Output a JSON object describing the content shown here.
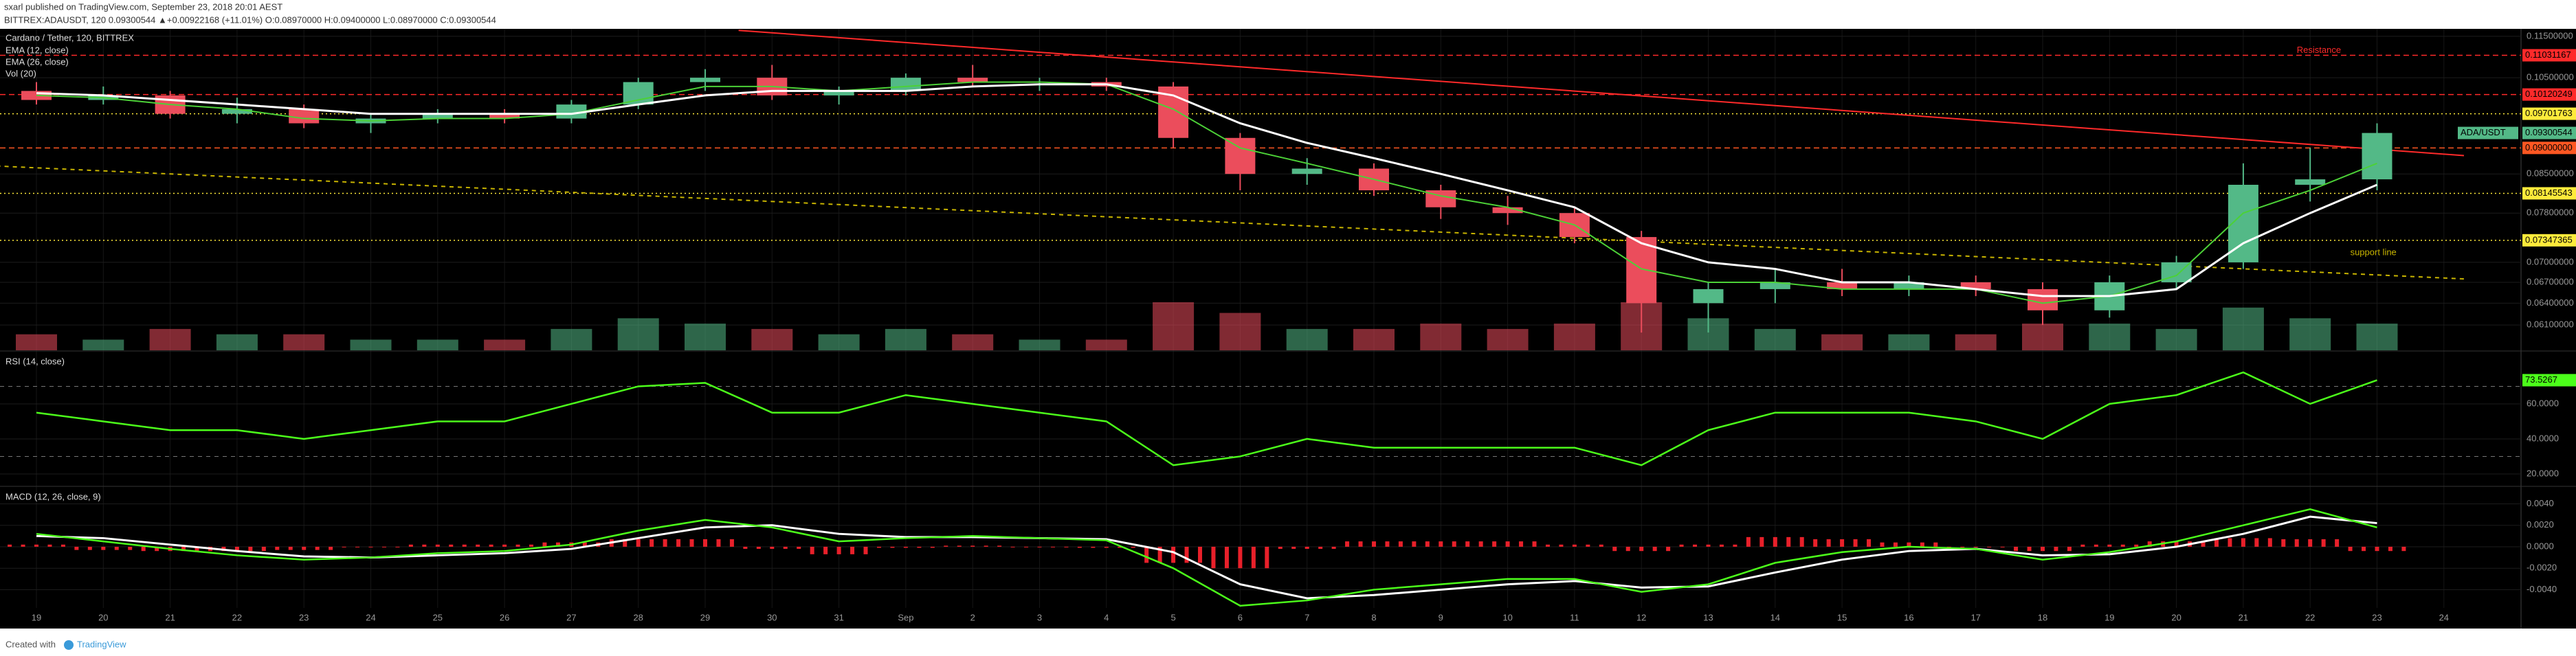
{
  "header": {
    "published": "sxarl published on TradingView.com, September 23, 2018 20:01 AEST",
    "quote": "BITTREX:ADAUSDT, 120 0.09300544 ▲+0.00922168 (+11.01%) O:0.08970000 H:0.09400000 L:0.08970000 C:0.09300544"
  },
  "footer": {
    "created": "Created with",
    "brand": "TradingView"
  },
  "chart_data": [
    {
      "type": "candlestick",
      "title": "Cardano / Tether, 120, BITTREX",
      "log": true,
      "grid": true,
      "categories": [
        "19",
        "20",
        "21",
        "22",
        "23",
        "24",
        "25",
        "26",
        "27",
        "28",
        "29",
        "30",
        "31",
        "Sep",
        "2",
        "3",
        "4",
        "5",
        "6",
        "7",
        "8",
        "9",
        "10",
        "11",
        "12",
        "13",
        "14",
        "15",
        "16",
        "17",
        "18",
        "19",
        "20",
        "21",
        "22",
        "23",
        "24"
      ],
      "open": [
        0.102,
        0.1,
        0.101,
        0.097,
        0.098,
        0.095,
        0.096,
        0.097,
        0.096,
        0.099,
        0.104,
        0.105,
        0.101,
        0.102,
        0.105,
        0.104,
        0.104,
        0.103,
        0.092,
        0.085,
        0.086,
        0.082,
        0.079,
        0.078,
        0.074,
        0.064,
        0.066,
        0.067,
        0.066,
        0.067,
        0.066,
        0.063,
        0.067,
        0.07,
        0.083,
        0.084,
        null
      ],
      "high": [
        0.104,
        0.103,
        0.102,
        0.1005,
        0.099,
        0.097,
        0.098,
        0.098,
        0.1,
        0.105,
        0.107,
        0.108,
        0.103,
        0.106,
        0.108,
        0.105,
        0.105,
        0.104,
        0.093,
        0.088,
        0.087,
        0.083,
        0.081,
        0.079,
        0.075,
        0.067,
        0.069,
        0.069,
        0.068,
        0.068,
        0.067,
        0.068,
        0.071,
        0.087,
        0.09,
        0.095,
        null
      ],
      "low": [
        0.099,
        0.099,
        0.096,
        0.095,
        0.094,
        0.093,
        0.095,
        0.095,
        0.095,
        0.098,
        0.102,
        0.1,
        0.099,
        0.101,
        0.103,
        0.102,
        0.102,
        0.09,
        0.082,
        0.083,
        0.081,
        0.077,
        0.076,
        0.073,
        0.06,
        0.06,
        0.064,
        0.065,
        0.065,
        0.065,
        0.061,
        0.062,
        0.066,
        0.069,
        0.08,
        0.082,
        null
      ],
      "close": [
        0.1,
        0.101,
        0.097,
        0.098,
        0.095,
        0.096,
        0.097,
        0.096,
        0.099,
        0.104,
        0.105,
        0.101,
        0.102,
        0.105,
        0.104,
        0.104,
        0.103,
        0.092,
        0.085,
        0.086,
        0.082,
        0.079,
        0.078,
        0.074,
        0.064,
        0.066,
        0.067,
        0.066,
        0.067,
        0.066,
        0.063,
        0.067,
        0.07,
        0.083,
        0.084,
        0.09300544,
        null
      ],
      "up_color": "#53b987",
      "down_color": "#eb4d5c",
      "series": [
        {
          "name": "EMA (12, close)",
          "color": "#4cd137",
          "values": [
            0.101,
            0.1005,
            0.099,
            0.098,
            0.096,
            0.0955,
            0.096,
            0.096,
            0.097,
            0.1,
            0.103,
            0.103,
            0.102,
            0.103,
            0.104,
            0.104,
            0.1035,
            0.098,
            0.09,
            0.087,
            0.084,
            0.081,
            0.079,
            0.076,
            0.069,
            0.067,
            0.067,
            0.066,
            0.066,
            0.066,
            0.064,
            0.065,
            0.068,
            0.078,
            0.082,
            0.087,
            null
          ]
        },
        {
          "name": "EMA (26, close)",
          "color": "#ffffff",
          "values": [
            0.1015,
            0.101,
            0.1,
            0.099,
            0.098,
            0.097,
            0.097,
            0.097,
            0.097,
            0.099,
            0.101,
            0.102,
            0.102,
            0.102,
            0.103,
            0.1035,
            0.1035,
            0.101,
            0.095,
            0.091,
            0.088,
            0.085,
            0.082,
            0.079,
            0.073,
            0.07,
            0.069,
            0.067,
            0.067,
            0.066,
            0.065,
            0.065,
            0.066,
            0.073,
            0.078,
            0.083,
            null
          ]
        }
      ],
      "volume": {
        "name": "Vol (20)",
        "values": [
          3,
          2,
          4,
          3,
          3,
          2,
          2,
          2,
          4,
          6,
          5,
          4,
          3,
          4,
          3,
          2,
          2,
          9,
          7,
          4,
          4,
          5,
          4,
          5,
          9,
          6,
          4,
          3,
          3,
          3,
          5,
          5,
          4,
          8,
          6,
          5,
          null
        ]
      },
      "ylim": [
        0.0577,
        0.1169
      ],
      "yticks": [
        {
          "value": 0.115,
          "label": "0.11500000"
        },
        {
          "value": 0.105,
          "label": "0.10500000"
        },
        {
          "value": 0.085,
          "label": "0.08500000"
        },
        {
          "value": 0.078,
          "label": "0.07800000"
        },
        {
          "value": 0.07,
          "label": "0.07000000"
        },
        {
          "value": 0.067,
          "label": "0.06700000"
        },
        {
          "value": 0.064,
          "label": "0.06400000"
        },
        {
          "value": 0.061,
          "label": "0.06100000"
        }
      ],
      "price_lines": [
        {
          "value": 0.11031167,
          "label": "0.11031167",
          "color": "#ff2a2a",
          "style": "dashed"
        },
        {
          "value": 0.10120249,
          "label": "0.10120249",
          "color": "#ff2a2a",
          "style": "dashed"
        },
        {
          "value": 0.09701763,
          "label": "0.09701763",
          "color": "#ffeb3b",
          "style": "dotted"
        },
        {
          "value": 0.09,
          "label": "0.09000000",
          "color": "#ff5722",
          "style": "dashed"
        },
        {
          "value": 0.08145543,
          "label": "0.08145543",
          "color": "#ffeb3b",
          "style": "dotted"
        },
        {
          "value": 0.07347365,
          "label": "0.07347365",
          "color": "#ffeb3b",
          "style": "dotted"
        }
      ],
      "symbol_label": "ADA/USDT",
      "trendlines": [
        {
          "text": "Resistance",
          "color": "#ff2a2a",
          "from": [
            10.5,
            0.1165
          ],
          "to": [
            36.3,
            0.0885
          ]
        },
        {
          "text": "support line",
          "color": "#c8b400",
          "from": [
            -0.6,
            0.0865
          ],
          "to": [
            36.3,
            0.0675
          ]
        }
      ]
    },
    {
      "type": "line",
      "title": "RSI (14, close)",
      "color": "#4cff1a",
      "values": [
        55,
        50,
        45,
        45,
        40,
        45,
        50,
        50,
        60,
        70,
        72,
        55,
        55,
        65,
        60,
        55,
        50,
        25,
        30,
        40,
        35,
        35,
        35,
        35,
        25,
        45,
        55,
        55,
        55,
        50,
        40,
        60,
        65,
        78,
        60,
        73.5267,
        null
      ],
      "levels": [
        30,
        70
      ],
      "ylim": [
        13.7,
        89.4
      ],
      "yticks": [
        {
          "value": 60,
          "label": "60.0000"
        },
        {
          "value": 40,
          "label": "40.0000"
        },
        {
          "value": 20,
          "label": "20.0000"
        }
      ]
    },
    {
      "type": "macd",
      "title": "MACD (12, 26, close, 9)",
      "macd": {
        "color": "#4cff1a",
        "values": [
          0.0012,
          0.0005,
          -0.0002,
          -0.0008,
          -0.0012,
          -0.001,
          -0.0006,
          -0.0004,
          0.0002,
          0.0015,
          0.0025,
          0.0018,
          0.0005,
          0.0008,
          0.001,
          0.0008,
          0.0006,
          -0.002,
          -0.0055,
          -0.005,
          -0.004,
          -0.0035,
          -0.003,
          -0.003,
          -0.0042,
          -0.0035,
          -0.0015,
          -0.0005,
          0.0,
          -0.0002,
          -0.0012,
          -0.0005,
          0.0005,
          0.002,
          0.0035,
          0.0018,
          null
        ]
      },
      "signal": {
        "color": "#ffffff",
        "values": [
          0.001,
          0.0008,
          0.0002,
          -0.0004,
          -0.0009,
          -0.001,
          -0.0008,
          -0.0006,
          -0.0002,
          0.0008,
          0.0018,
          0.002,
          0.0012,
          0.0009,
          0.0009,
          0.0008,
          0.0007,
          -0.0005,
          -0.0035,
          -0.0048,
          -0.0045,
          -0.004,
          -0.0035,
          -0.0032,
          -0.0038,
          -0.0037,
          -0.0024,
          -0.0012,
          -0.0004,
          -0.0002,
          -0.0008,
          -0.0007,
          0.0,
          0.0012,
          0.0028,
          0.0022,
          null
        ]
      },
      "histogram": {
        "color": "#e8202a",
        "values": [
          0.0002,
          -0.0003,
          -0.0004,
          -0.0004,
          -0.0003,
          0,
          0.0002,
          0.0002,
          0.0004,
          0.0007,
          0.0007,
          -0.0002,
          -0.0007,
          -0.0001,
          0.0001,
          0,
          -0.0001,
          -0.0015,
          -0.002,
          -0.0002,
          0.0005,
          0.0005,
          0.0005,
          0.0002,
          -0.0004,
          0.0002,
          0.0009,
          0.0007,
          0.0004,
          0,
          -0.0004,
          0.0002,
          0.0005,
          0.0008,
          0.0007,
          -0.0004,
          null
        ]
      },
      "ylim": [
        -0.0057,
        0.0055
      ],
      "yticks": [
        {
          "value": 0.004,
          "label": "0.0040"
        },
        {
          "value": 0.002,
          "label": "0.0020"
        },
        {
          "value": 0,
          "label": "0.0000"
        },
        {
          "value": -0.002,
          "label": "-0.0020"
        },
        {
          "value": -0.004,
          "label": "-0.0040"
        }
      ]
    }
  ]
}
